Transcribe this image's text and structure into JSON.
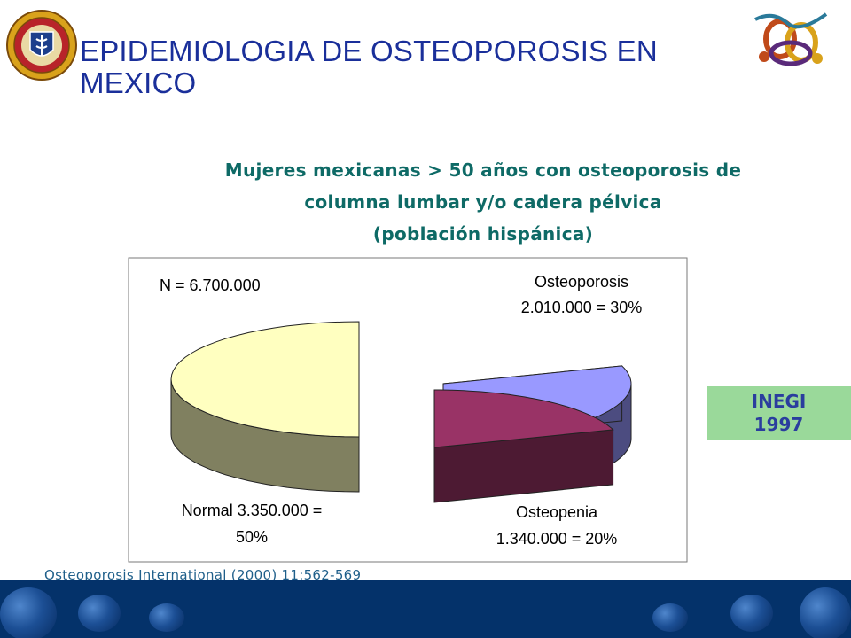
{
  "slide": {
    "title": "EPIDEMIOLOGIA DE OSTEOPOROSIS EN MEXICO",
    "title_line1": "EPIDEMIOLOGIA DE OSTEOPOROSIS EN",
    "title_line2": "MEXICO",
    "subtitle_line1": "Mujeres mexicanas > 50 años con osteoporosis de",
    "subtitle_line2": "columna lumbar y/o cadera pélvica",
    "subtitle_line3": "(población hispánica)",
    "badge_line1": "INEGI",
    "badge_line2": "1997",
    "citation": "Osteoporosis International (2000) 11:562-569"
  },
  "colors": {
    "title": "#1a2f9a",
    "subtitle": "#0e6a66",
    "badge_bg": "#9ad99a",
    "badge_text": "#2a3d9e",
    "footer": "#04326a"
  },
  "chart_data": {
    "type": "pie",
    "variant": "3d-exploded",
    "annotation": "N = 6.700.000",
    "slices": [
      {
        "name": "Normal",
        "value": 3350000,
        "percent": 50,
        "color": "#ffffc0",
        "side_color": "#808060",
        "label_line1": "Normal 3.350.000 =",
        "label_line2": "50%"
      },
      {
        "name": "Osteoporosis",
        "value": 2010000,
        "percent": 30,
        "color": "#9999ff",
        "side_color": "#4c4c80",
        "label_line1": "Osteoporosis",
        "label_line2": "2.010.000 = 30%"
      },
      {
        "name": "Osteopenia",
        "value": 1340000,
        "percent": 20,
        "color": "#993366",
        "side_color": "#4d1a33",
        "label_line1": "Osteopenia",
        "label_line2": "1.340.000 = 20%"
      }
    ]
  }
}
